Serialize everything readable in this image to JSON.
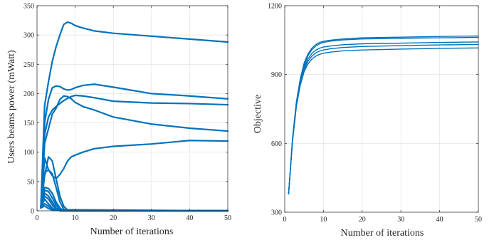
{
  "chart_data": [
    {
      "type": "line",
      "xlabel": "Number of iterations",
      "ylabel": "Users beams power (mWatt)",
      "xlim": [
        0,
        50
      ],
      "ylim": [
        0,
        350
      ],
      "xticks": [
        0,
        10,
        20,
        30,
        40,
        50
      ],
      "yticks": [
        0,
        50,
        100,
        150,
        200,
        250,
        300,
        350
      ],
      "grid": true,
      "color": "#0072BD",
      "series": [
        {
          "x": [
            1,
            2,
            3,
            4,
            5,
            6,
            7,
            8,
            9,
            10,
            12,
            15,
            20,
            30,
            40,
            50
          ],
          "y": [
            5,
            180,
            220,
            255,
            280,
            300,
            318,
            322,
            320,
            316,
            312,
            307,
            303,
            298,
            293,
            288
          ]
        },
        {
          "x": [
            1,
            2,
            3,
            4,
            5,
            6,
            7,
            8,
            9,
            10,
            12,
            15,
            20,
            30,
            40,
            50
          ],
          "y": [
            5,
            150,
            190,
            210,
            213,
            212,
            208,
            206,
            207,
            210,
            214,
            216,
            211,
            200,
            196,
            191
          ]
        },
        {
          "x": [
            1,
            2,
            3,
            4,
            5,
            6,
            7,
            8,
            9,
            10,
            12,
            15,
            20,
            30,
            40,
            50
          ],
          "y": [
            5,
            130,
            160,
            172,
            178,
            183,
            188,
            192,
            195,
            197,
            196,
            193,
            187,
            184,
            183,
            181
          ]
        },
        {
          "x": [
            1,
            2,
            3,
            4,
            5,
            6,
            7,
            8,
            9,
            10,
            12,
            15,
            20,
            30,
            40,
            50
          ],
          "y": [
            5,
            115,
            140,
            165,
            175,
            190,
            196,
            195,
            191,
            185,
            178,
            172,
            160,
            148,
            141,
            136
          ]
        },
        {
          "x": [
            1,
            2,
            3,
            4,
            5,
            6,
            7,
            8,
            9,
            10,
            12,
            15,
            20,
            30,
            40,
            50
          ],
          "y": [
            5,
            90,
            70,
            60,
            55,
            62,
            72,
            85,
            92,
            95,
            100,
            106,
            110,
            114,
            120,
            119
          ]
        },
        {
          "x": [
            1,
            2,
            3,
            4,
            5,
            6,
            7,
            8,
            9,
            10,
            50
          ],
          "y": [
            5,
            60,
            92,
            85,
            55,
            25,
            8,
            1,
            0,
            0,
            0
          ]
        },
        {
          "x": [
            1,
            2,
            3,
            4,
            5,
            6,
            7,
            8,
            50
          ],
          "y": [
            5,
            65,
            70,
            63,
            40,
            15,
            3,
            0,
            0
          ]
        },
        {
          "x": [
            1,
            2,
            3,
            4,
            5,
            6,
            7,
            50
          ],
          "y": [
            5,
            40,
            38,
            30,
            15,
            5,
            0,
            0
          ]
        },
        {
          "x": [
            1,
            2,
            3,
            4,
            5,
            6,
            7,
            50
          ],
          "y": [
            5,
            35,
            33,
            22,
            10,
            2,
            0,
            0
          ]
        },
        {
          "x": [
            1,
            2,
            3,
            4,
            5,
            6,
            50
          ],
          "y": [
            5,
            30,
            25,
            15,
            5,
            0,
            0
          ]
        },
        {
          "x": [
            1,
            2,
            3,
            4,
            5,
            6,
            50
          ],
          "y": [
            5,
            25,
            20,
            10,
            3,
            0,
            0
          ]
        },
        {
          "x": [
            1,
            2,
            3,
            4,
            5,
            50
          ],
          "y": [
            5,
            20,
            12,
            5,
            1,
            0
          ]
        },
        {
          "x": [
            1,
            2,
            3,
            4,
            50
          ],
          "y": [
            5,
            12,
            8,
            2,
            0
          ]
        },
        {
          "x": [
            1,
            2,
            3,
            4,
            50
          ],
          "y": [
            5,
            8,
            4,
            1,
            0
          ]
        }
      ]
    },
    {
      "type": "line",
      "xlabel": "Number of iterations",
      "ylabel": "Objective",
      "xlim": [
        0,
        50
      ],
      "ylim": [
        300,
        1200
      ],
      "xticks": [
        0,
        10,
        20,
        30,
        40,
        50
      ],
      "yticks": [
        300,
        600,
        900,
        1200
      ],
      "grid": true,
      "color": "#0072BD",
      "series": [
        {
          "x": [
            1,
            2,
            3,
            4,
            5,
            6,
            7,
            8,
            9,
            10,
            12,
            15,
            20,
            30,
            40,
            50
          ],
          "y": [
            380,
            620,
            780,
            880,
            950,
            990,
            1015,
            1030,
            1040,
            1045,
            1050,
            1055,
            1060,
            1063,
            1066,
            1068
          ]
        },
        {
          "x": [
            1,
            2,
            3,
            4,
            5,
            6,
            7,
            8,
            9,
            10,
            12,
            15,
            20,
            30,
            40,
            50
          ],
          "y": [
            380,
            615,
            775,
            872,
            940,
            982,
            1008,
            1024,
            1034,
            1040,
            1046,
            1051,
            1055,
            1058,
            1060,
            1062
          ]
        },
        {
          "x": [
            1,
            2,
            3,
            4,
            5,
            6,
            7,
            8,
            9,
            10,
            12,
            15,
            20,
            30,
            40,
            50
          ],
          "y": [
            380,
            612,
            770,
            865,
            930,
            968,
            992,
            1006,
            1015,
            1020,
            1025,
            1030,
            1034,
            1037,
            1040,
            1042
          ]
        },
        {
          "x": [
            1,
            2,
            3,
            4,
            5,
            6,
            7,
            8,
            9,
            10,
            12,
            15,
            20,
            30,
            40,
            50
          ],
          "y": [
            380,
            610,
            765,
            860,
            922,
            958,
            980,
            994,
            1002,
            1007,
            1013,
            1018,
            1022,
            1026,
            1029,
            1031
          ]
        },
        {
          "x": [
            1,
            2,
            3,
            4,
            5,
            6,
            7,
            8,
            9,
            10,
            12,
            15,
            20,
            30,
            40,
            50
          ],
          "y": [
            380,
            605,
            760,
            852,
            912,
            946,
            967,
            980,
            988,
            993,
            998,
            1003,
            1007,
            1011,
            1014,
            1016
          ]
        }
      ]
    }
  ]
}
